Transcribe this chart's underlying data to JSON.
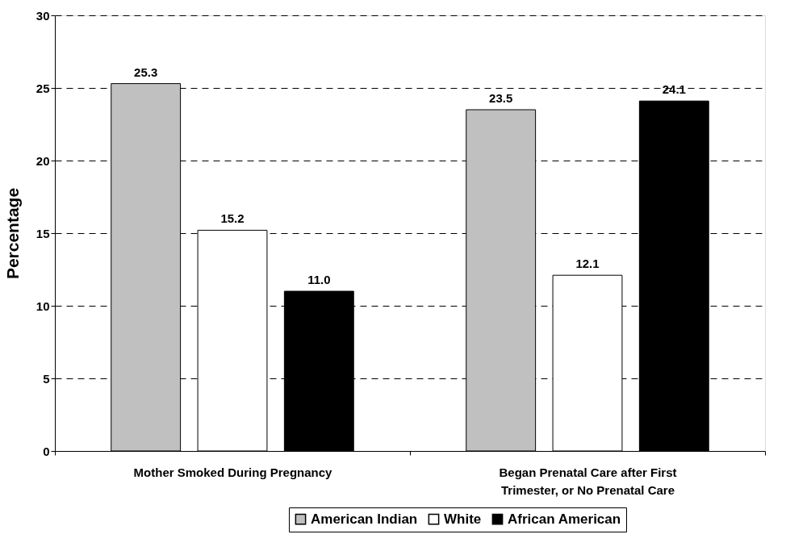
{
  "chart_data": {
    "type": "bar",
    "ylabel": "Percentage",
    "categories": [
      "Mother Smoked During Pregnancy",
      "Began Prenatal Care after First Trimester, or No Prenatal Care"
    ],
    "series": [
      {
        "name": "American Indian",
        "color": "#c0c0c0",
        "values": [
          25.3,
          23.5
        ],
        "value_labels": [
          "25.3",
          "23.5"
        ]
      },
      {
        "name": "White",
        "color": "#ffffff",
        "values": [
          15.2,
          12.1
        ],
        "value_labels": [
          "15.2",
          "12.1"
        ]
      },
      {
        "name": "African American",
        "color": "#000000",
        "values": [
          11.0,
          24.1
        ],
        "value_labels": [
          "11.0",
          "24.1"
        ]
      }
    ],
    "ylim": [
      0,
      30
    ],
    "yticks": [
      0,
      5,
      10,
      15,
      20,
      25,
      30
    ],
    "grid": "y",
    "legend": "bottom"
  }
}
